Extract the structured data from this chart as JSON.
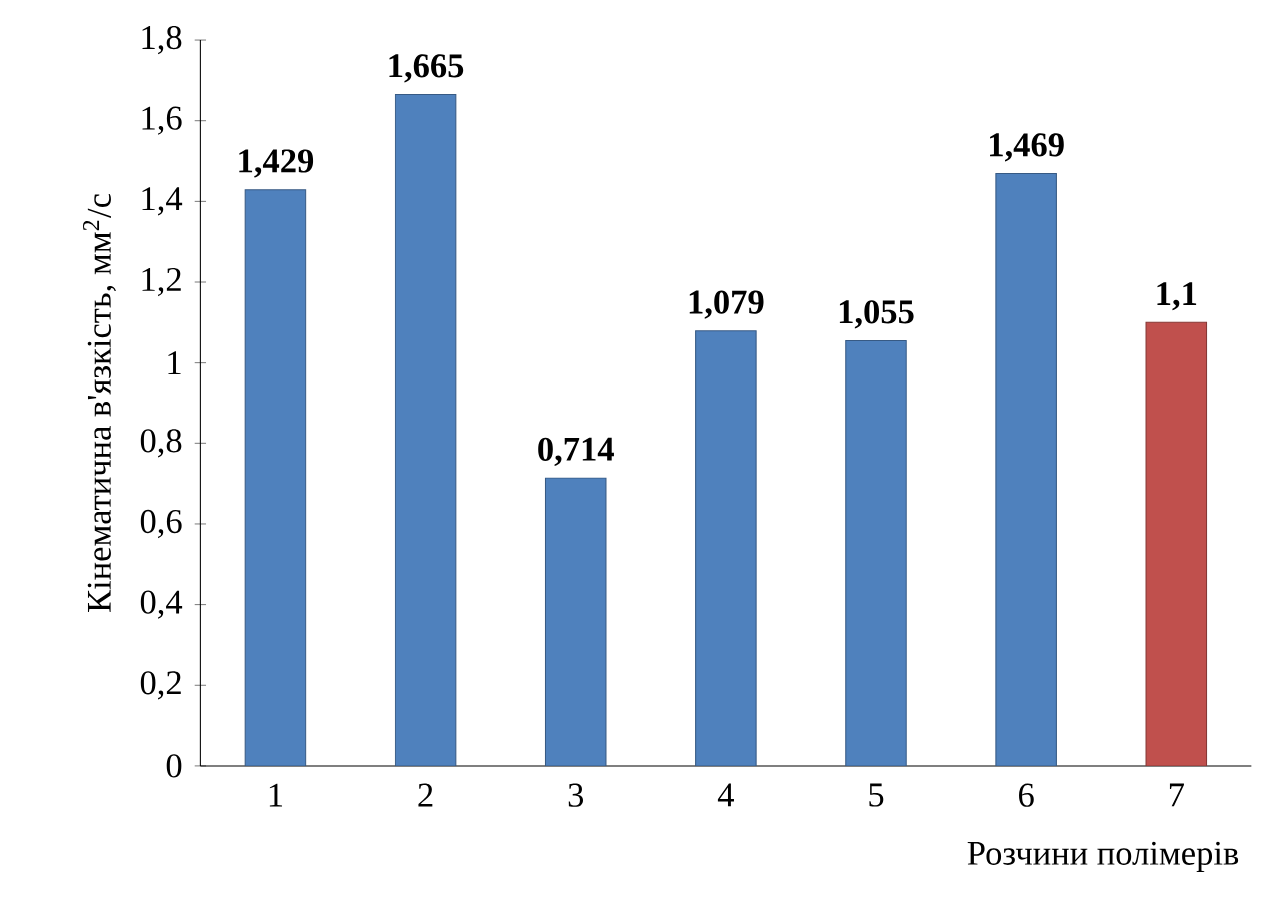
{
  "chart_data": {
    "type": "bar",
    "ylabel": "Кінематична в'язкість, мм$^{2}$/с",
    "xlabel": "Розчини полімерів",
    "categories": [
      "1",
      "2",
      "3",
      "4",
      "5",
      "6",
      "7"
    ],
    "values": [
      1.429,
      1.665,
      0.714,
      1.079,
      1.055,
      1.469,
      1.1
    ],
    "colors": [
      "#4f81bd",
      "#4f81bd",
      "#4f81bd",
      "#4f81bd",
      "#4f81bd",
      "#4f81bd",
      "#c0504d"
    ],
    "value_labels": [
      "1,429",
      "1,665",
      "0,714",
      "1,079",
      "1,055",
      "1,469",
      "1,1"
    ],
    "ylim": [
      0,
      1.8
    ],
    "yticks": [
      0,
      {
        "value": 0.2,
        "label": "0,2"
      },
      {
        "value": 0.4,
        "label": "0,4"
      },
      {
        "value": 0.6,
        "label": "0,6"
      },
      {
        "value": 0.8,
        "label": "0,8"
      },
      1,
      {
        "value": 1.2,
        "label": "1,2"
      },
      {
        "value": 1.4,
        "label": "1,4"
      },
      {
        "value": 1.6,
        "label": "1,6"
      },
      {
        "value": 1.8,
        "label": "1,8"
      }
    ],
    "grid": false
  }
}
